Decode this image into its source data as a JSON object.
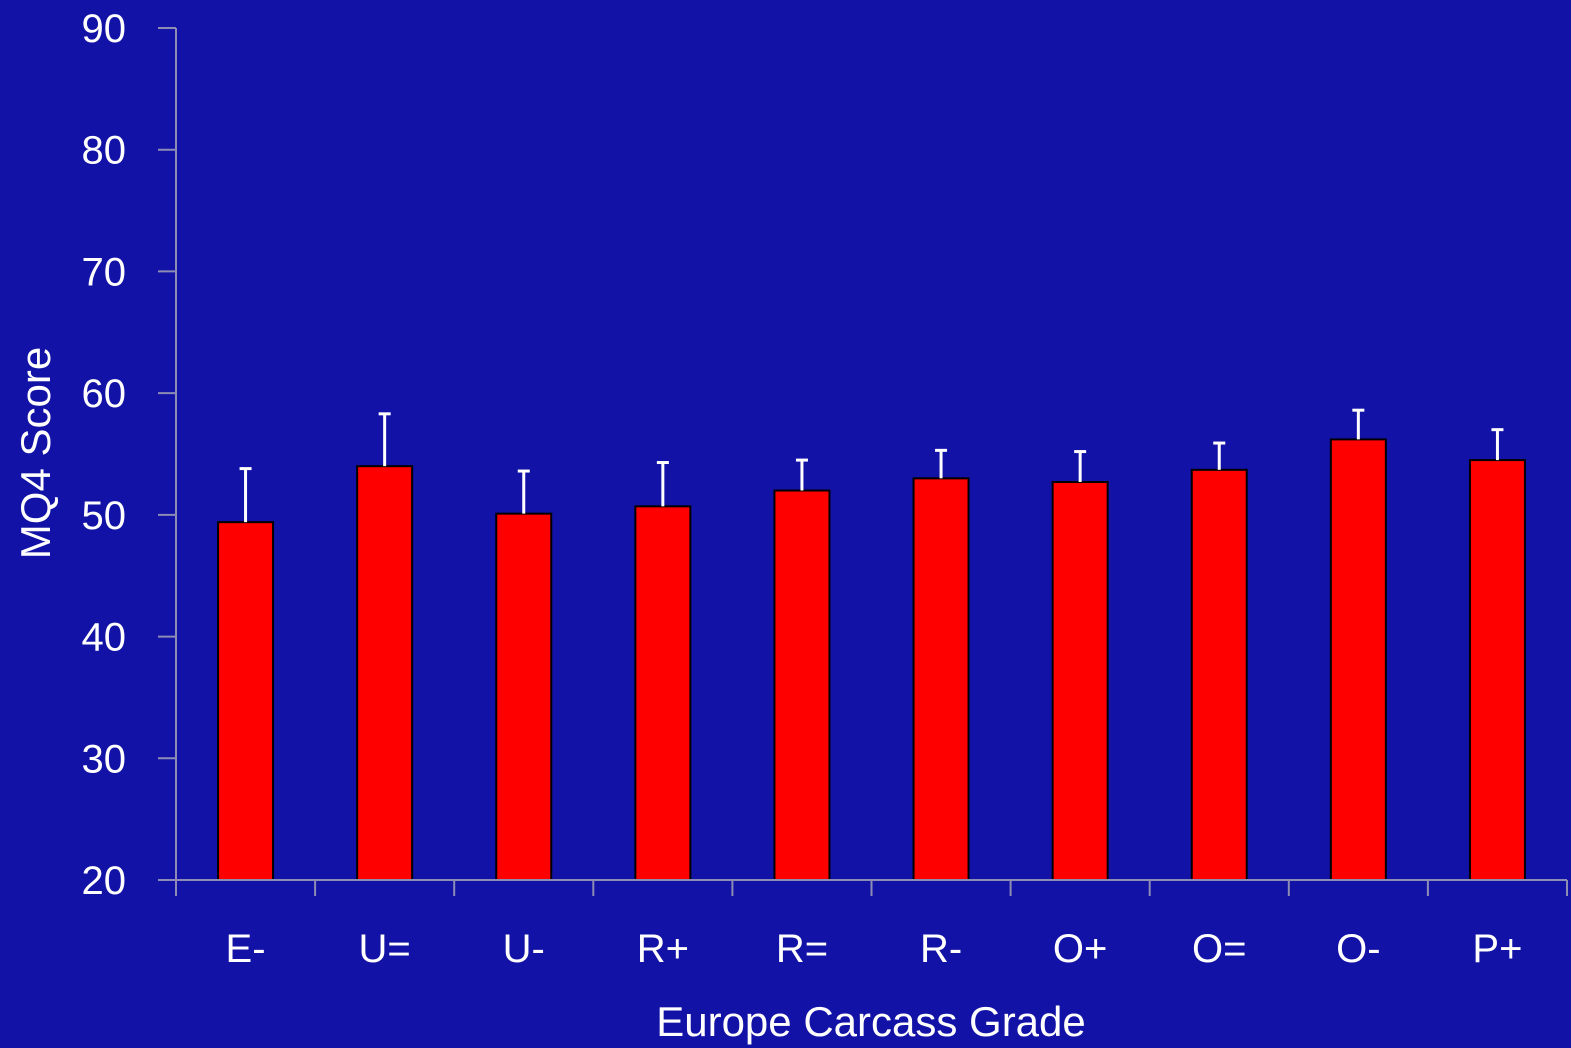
{
  "colors": {
    "background": "#1212a6",
    "bar_fill": "#ff0000",
    "bar_stroke": "#000000",
    "error_bar": "#ffffff",
    "axis": "#8c8cb4",
    "text": "#ffffff"
  },
  "chart_data": {
    "type": "bar",
    "title": "",
    "xlabel": "Europe Carcass Grade",
    "ylabel": "MQ4 Score",
    "ylim": [
      20,
      90
    ],
    "yticks": [
      20,
      30,
      40,
      50,
      60,
      70,
      80,
      90
    ],
    "grid": false,
    "legend": "none",
    "categories": [
      "E-",
      "U=",
      "U-",
      "R+",
      "R=",
      "R-",
      "O+",
      "O=",
      "O-",
      "P+"
    ],
    "values": [
      49.4,
      54.0,
      50.1,
      50.7,
      52.0,
      53.0,
      52.7,
      53.7,
      56.2,
      54.5
    ],
    "error_upper": [
      53.8,
      58.3,
      53.6,
      54.3,
      54.5,
      55.3,
      55.2,
      55.9,
      58.6,
      57.0
    ]
  }
}
